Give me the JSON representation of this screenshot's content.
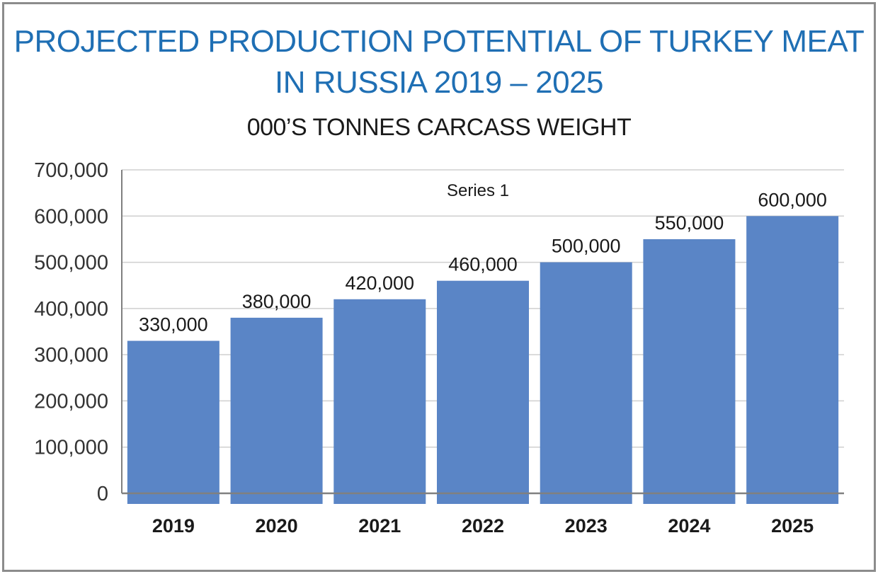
{
  "title_line1": "PROJECTED PRODUCTION POTENTIAL OF TURKEY MEAT",
  "title_line2": "IN RUSSIA 2019 – 2025",
  "subtitle": "000’S TONNES CARCASS WEIGHT",
  "colors": {
    "title": "#1f6fb4",
    "bar": "#5a85c6",
    "grid": "#cfcfcf",
    "axis": "#808080",
    "border": "#8c8c8c"
  },
  "chart_data": {
    "type": "bar",
    "title": "PROJECTED PRODUCTION POTENTIAL OF TURKEY MEAT IN RUSSIA 2019 – 2025",
    "subtitle": "000’S TONNES CARCASS WEIGHT",
    "categories": [
      "2019",
      "2020",
      "2021",
      "2022",
      "2023",
      "2024",
      "2025"
    ],
    "series": [
      {
        "name": "Series 1",
        "values": [
          330000,
          380000,
          420000,
          460000,
          500000,
          550000,
          600000
        ]
      }
    ],
    "data_labels": [
      "330,000",
      "380,000",
      "420,000",
      "460,000",
      "500,000",
      "550,000",
      "600,000"
    ],
    "y_ticks": [
      "0",
      "100,000",
      "200,000",
      "300,000",
      "400,000",
      "500,000",
      "600,000",
      "700,000"
    ],
    "ylim": [
      0,
      700000
    ],
    "grid": true,
    "legend_position": "top-center",
    "xlabel": "",
    "ylabel": ""
  }
}
